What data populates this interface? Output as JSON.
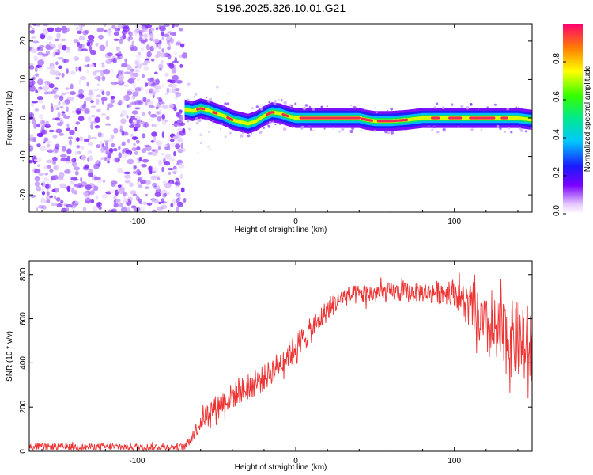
{
  "figure": {
    "title": "S196.2025.326.10.01.G21"
  },
  "chart_data": [
    {
      "type": "heatmap",
      "title": "S196.2025.326.10.01.G21",
      "xlabel": "Height of straight line (km)",
      "ylabel": "Frequency (Hz)",
      "xlim": [
        -168,
        149
      ],
      "ylim": [
        -24.5,
        24.5
      ],
      "xticks": [
        -100,
        0,
        100
      ],
      "yticks": [
        -20,
        -10,
        0,
        10,
        20
      ],
      "noise_region_x": [
        -168,
        -70
      ],
      "ridge": {
        "x": [
          -70,
          -65,
          -60,
          -55,
          -50,
          -45,
          -40,
          -35,
          -30,
          -25,
          -20,
          -15,
          -10,
          -5,
          0,
          10,
          20,
          30,
          40,
          45,
          50,
          60,
          70,
          80,
          90,
          100,
          110,
          120,
          130,
          140,
          149
        ],
        "y": [
          2.2,
          1.8,
          2.5,
          2.0,
          1.2,
          0.5,
          -0.5,
          -1.0,
          -1.5,
          -0.8,
          0.5,
          1.5,
          1.2,
          0.5,
          0.0,
          0.0,
          0.0,
          0.0,
          0.0,
          -0.5,
          -0.8,
          -0.8,
          -0.5,
          0.0,
          0.0,
          0.0,
          0.0,
          0.0,
          0.0,
          0.0,
          -0.5
        ]
      },
      "colorbar": {
        "label": "Normalized spectral amplitude",
        "ticks": [
          "0.0",
          "0.2",
          "0.4",
          "0.6",
          "0.8"
        ],
        "range": [
          0,
          1
        ]
      }
    },
    {
      "type": "line",
      "xlabel": "Height of straight line (km)",
      "ylabel": "SNR (10 * v/v)",
      "xlim": [
        -168,
        149
      ],
      "ylim": [
        0,
        860
      ],
      "xticks": [
        -100,
        0,
        100
      ],
      "yticks": [
        0,
        200,
        400,
        600,
        800
      ],
      "series": [
        {
          "name": "SNR",
          "color": "#ee3333",
          "trend_x": [
            -168,
            -70,
            -60,
            -55,
            -40,
            -20,
            -10,
            10,
            20,
            30,
            40,
            60,
            80,
            100,
            110,
            120,
            130,
            140,
            149
          ],
          "trend_y": [
            20,
            20,
            130,
            180,
            250,
            330,
            400,
            550,
            640,
            700,
            710,
            720,
            720,
            720,
            650,
            550,
            520,
            500,
            460
          ],
          "noise_amplitude": [
            15,
            15,
            40,
            50,
            60,
            60,
            60,
            60,
            50,
            45,
            45,
            45,
            45,
            60,
            100,
            140,
            170,
            180,
            200
          ]
        }
      ]
    }
  ]
}
